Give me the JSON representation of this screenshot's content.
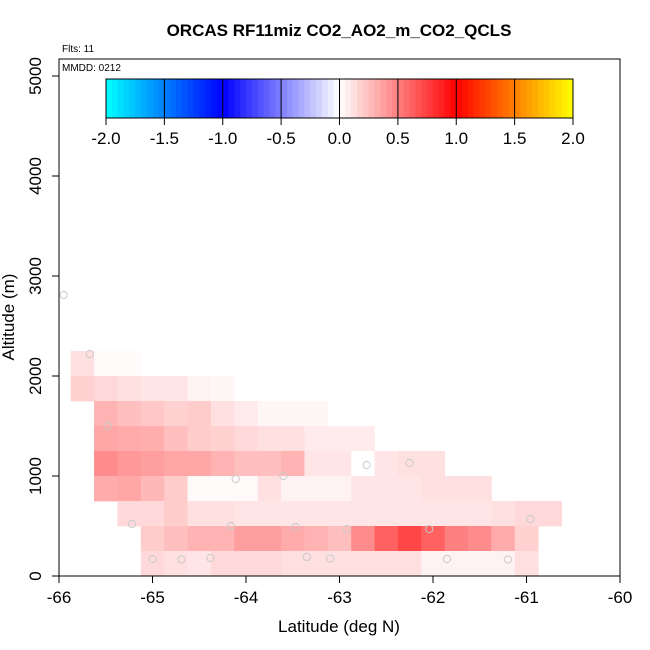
{
  "chart_data": {
    "type": "heatmap",
    "title": "ORCAS RF11miz CO2_AO2_m_CO2_QCLS",
    "annotations": {
      "flights": "Flts: 11",
      "date": "MMDD: 0212"
    },
    "xlabel": "Latitude (deg N)",
    "ylabel": "Altitude (m)",
    "xlim": [
      -66,
      -60
    ],
    "ylim": [
      0,
      5200
    ],
    "x_ticks": [
      -66,
      -65,
      -64,
      -63,
      -62,
      -61,
      -60
    ],
    "y_ticks": [
      0,
      1000,
      2000,
      3000,
      4000,
      5000
    ],
    "colorbar": {
      "range": [
        -2.0,
        2.0
      ],
      "ticks": [
        "-2.0",
        "-1.5",
        "-1.0",
        "-0.5",
        "0.0",
        "0.5",
        "1.0",
        "1.5",
        "2.0"
      ],
      "colors": [
        "#00ffff",
        "#0000ff",
        "#ffffff",
        "#ff0000",
        "#ffff00"
      ]
    },
    "cell_size": {
      "dlat": 0.25,
      "dalt": 250
    },
    "cells": [
      {
        "lat": -65.75,
        "alt": 2000,
        "v": 0.12
      },
      {
        "lat": -65.5,
        "alt": 2000,
        "v": 0.02
      },
      {
        "lat": -65.25,
        "alt": 2000,
        "v": 0.02
      },
      {
        "lat": -65.75,
        "alt": 1750,
        "v": 0.18
      },
      {
        "lat": -65.5,
        "alt": 1750,
        "v": 0.15
      },
      {
        "lat": -65.25,
        "alt": 1750,
        "v": 0.12
      },
      {
        "lat": -65.0,
        "alt": 1750,
        "v": 0.1
      },
      {
        "lat": -64.75,
        "alt": 1750,
        "v": 0.1
      },
      {
        "lat": -64.5,
        "alt": 1750,
        "v": 0.05
      },
      {
        "lat": -64.25,
        "alt": 1750,
        "v": 0.03
      },
      {
        "lat": -65.5,
        "alt": 1500,
        "v": 0.3
      },
      {
        "lat": -65.25,
        "alt": 1500,
        "v": 0.25
      },
      {
        "lat": -65.0,
        "alt": 1500,
        "v": 0.22
      },
      {
        "lat": -64.75,
        "alt": 1500,
        "v": 0.18
      },
      {
        "lat": -64.5,
        "alt": 1500,
        "v": 0.2
      },
      {
        "lat": -64.25,
        "alt": 1500,
        "v": 0.12
      },
      {
        "lat": -64.0,
        "alt": 1500,
        "v": 0.08
      },
      {
        "lat": -63.75,
        "alt": 1500,
        "v": 0.03
      },
      {
        "lat": -63.5,
        "alt": 1500,
        "v": 0.03
      },
      {
        "lat": -63.25,
        "alt": 1500,
        "v": 0.03
      },
      {
        "lat": -65.5,
        "alt": 1250,
        "v": 0.35
      },
      {
        "lat": -65.25,
        "alt": 1250,
        "v": 0.33
      },
      {
        "lat": -65.0,
        "alt": 1250,
        "v": 0.32
      },
      {
        "lat": -64.75,
        "alt": 1250,
        "v": 0.25
      },
      {
        "lat": -64.5,
        "alt": 1250,
        "v": 0.2
      },
      {
        "lat": -64.25,
        "alt": 1250,
        "v": 0.18
      },
      {
        "lat": -64.0,
        "alt": 1250,
        "v": 0.15
      },
      {
        "lat": -63.75,
        "alt": 1250,
        "v": 0.12
      },
      {
        "lat": -63.5,
        "alt": 1250,
        "v": 0.12
      },
      {
        "lat": -63.25,
        "alt": 1250,
        "v": 0.08
      },
      {
        "lat": -63.0,
        "alt": 1250,
        "v": 0.08
      },
      {
        "lat": -62.75,
        "alt": 1250,
        "v": 0.08
      },
      {
        "lat": -65.5,
        "alt": 1000,
        "v": 0.45
      },
      {
        "lat": -65.25,
        "alt": 1000,
        "v": 0.4
      },
      {
        "lat": -65.0,
        "alt": 1000,
        "v": 0.38
      },
      {
        "lat": -64.75,
        "alt": 1000,
        "v": 0.35
      },
      {
        "lat": -64.5,
        "alt": 1000,
        "v": 0.35
      },
      {
        "lat": -64.25,
        "alt": 1000,
        "v": 0.3
      },
      {
        "lat": -64.0,
        "alt": 1000,
        "v": 0.25
      },
      {
        "lat": -63.75,
        "alt": 1000,
        "v": 0.25
      },
      {
        "lat": -63.5,
        "alt": 1000,
        "v": 0.3
      },
      {
        "lat": -63.25,
        "alt": 1000,
        "v": 0.1
      },
      {
        "lat": -63.0,
        "alt": 1000,
        "v": 0.1
      },
      {
        "lat": -62.75,
        "alt": 1000,
        "v": 0.0
      },
      {
        "lat": -62.5,
        "alt": 1000,
        "v": 0.1
      },
      {
        "lat": -62.25,
        "alt": 1000,
        "v": 0.12
      },
      {
        "lat": -62.0,
        "alt": 1000,
        "v": 0.12
      },
      {
        "lat": -65.5,
        "alt": 750,
        "v": 0.33
      },
      {
        "lat": -65.25,
        "alt": 750,
        "v": 0.35
      },
      {
        "lat": -65.0,
        "alt": 750,
        "v": 0.28
      },
      {
        "lat": -64.75,
        "alt": 750,
        "v": 0.2
      },
      {
        "lat": -64.5,
        "alt": 750,
        "v": 0.02
      },
      {
        "lat": -64.25,
        "alt": 750,
        "v": 0.02
      },
      {
        "lat": -64.0,
        "alt": 750,
        "v": 0.02
      },
      {
        "lat": -63.75,
        "alt": 750,
        "v": 0.12
      },
      {
        "lat": -63.5,
        "alt": 750,
        "v": 0.05
      },
      {
        "lat": -63.25,
        "alt": 750,
        "v": 0.05
      },
      {
        "lat": -63.0,
        "alt": 750,
        "v": 0.05
      },
      {
        "lat": -62.75,
        "alt": 750,
        "v": 0.1
      },
      {
        "lat": -62.5,
        "alt": 750,
        "v": 0.1
      },
      {
        "lat": -62.25,
        "alt": 750,
        "v": 0.1
      },
      {
        "lat": -62.0,
        "alt": 750,
        "v": 0.12
      },
      {
        "lat": -61.75,
        "alt": 750,
        "v": 0.12
      },
      {
        "lat": -61.5,
        "alt": 750,
        "v": 0.12
      },
      {
        "lat": -65.25,
        "alt": 500,
        "v": 0.15
      },
      {
        "lat": -65.0,
        "alt": 500,
        "v": 0.15
      },
      {
        "lat": -64.75,
        "alt": 500,
        "v": 0.2
      },
      {
        "lat": -64.5,
        "alt": 500,
        "v": 0.12
      },
      {
        "lat": -64.25,
        "alt": 500,
        "v": 0.12
      },
      {
        "lat": -64.0,
        "alt": 500,
        "v": 0.1
      },
      {
        "lat": -63.75,
        "alt": 500,
        "v": 0.1
      },
      {
        "lat": -63.5,
        "alt": 500,
        "v": 0.1
      },
      {
        "lat": -63.25,
        "alt": 500,
        "v": 0.1
      },
      {
        "lat": -63.0,
        "alt": 500,
        "v": 0.1
      },
      {
        "lat": -62.75,
        "alt": 500,
        "v": 0.1
      },
      {
        "lat": -62.5,
        "alt": 500,
        "v": 0.1
      },
      {
        "lat": -62.25,
        "alt": 500,
        "v": 0.1
      },
      {
        "lat": -62.0,
        "alt": 500,
        "v": 0.1
      },
      {
        "lat": -61.75,
        "alt": 500,
        "v": 0.1
      },
      {
        "lat": -61.5,
        "alt": 500,
        "v": 0.1
      },
      {
        "lat": -61.25,
        "alt": 500,
        "v": 0.12
      },
      {
        "lat": -61.0,
        "alt": 500,
        "v": 0.15
      },
      {
        "lat": -60.75,
        "alt": 500,
        "v": 0.15
      },
      {
        "lat": -65.0,
        "alt": 250,
        "v": 0.2
      },
      {
        "lat": -64.75,
        "alt": 250,
        "v": 0.25
      },
      {
        "lat": -64.5,
        "alt": 250,
        "v": 0.3
      },
      {
        "lat": -64.25,
        "alt": 250,
        "v": 0.3
      },
      {
        "lat": -64.0,
        "alt": 250,
        "v": 0.38
      },
      {
        "lat": -63.75,
        "alt": 250,
        "v": 0.38
      },
      {
        "lat": -63.5,
        "alt": 250,
        "v": 0.33
      },
      {
        "lat": -63.25,
        "alt": 250,
        "v": 0.3
      },
      {
        "lat": -63.0,
        "alt": 250,
        "v": 0.25
      },
      {
        "lat": -62.75,
        "alt": 250,
        "v": 0.45
      },
      {
        "lat": -62.5,
        "alt": 250,
        "v": 0.62
      },
      {
        "lat": -62.25,
        "alt": 250,
        "v": 0.72
      },
      {
        "lat": -62.0,
        "alt": 250,
        "v": 0.62
      },
      {
        "lat": -61.75,
        "alt": 250,
        "v": 0.5
      },
      {
        "lat": -61.5,
        "alt": 250,
        "v": 0.45
      },
      {
        "lat": -61.25,
        "alt": 250,
        "v": 0.33
      },
      {
        "lat": -61.0,
        "alt": 250,
        "v": 0.18
      },
      {
        "lat": -65.0,
        "alt": 0,
        "v": 0.15
      },
      {
        "lat": -64.75,
        "alt": 0,
        "v": 0.12
      },
      {
        "lat": -64.5,
        "alt": 0,
        "v": 0.1
      },
      {
        "lat": -64.25,
        "alt": 0,
        "v": 0.15
      },
      {
        "lat": -64.0,
        "alt": 0,
        "v": 0.15
      },
      {
        "lat": -63.75,
        "alt": 0,
        "v": 0.15
      },
      {
        "lat": -63.5,
        "alt": 0,
        "v": 0.12
      },
      {
        "lat": -63.25,
        "alt": 0,
        "v": 0.12
      },
      {
        "lat": -63.0,
        "alt": 0,
        "v": 0.12
      },
      {
        "lat": -62.75,
        "alt": 0,
        "v": 0.12
      },
      {
        "lat": -62.5,
        "alt": 0,
        "v": 0.12
      },
      {
        "lat": -62.25,
        "alt": 0,
        "v": 0.12
      },
      {
        "lat": -62.0,
        "alt": 0,
        "v": 0.05
      },
      {
        "lat": -61.75,
        "alt": 0,
        "v": 0.05
      },
      {
        "lat": -61.5,
        "alt": 0,
        "v": 0.05
      },
      {
        "lat": -61.25,
        "alt": 0,
        "v": 0.05
      },
      {
        "lat": -61.0,
        "alt": 0,
        "v": 0.12
      }
    ],
    "points": [
      {
        "lat": -65.95,
        "alt": 2810
      },
      {
        "lat": -65.67,
        "alt": 2220
      },
      {
        "lat": -65.48,
        "alt": 1500
      },
      {
        "lat": -65.22,
        "alt": 520
      },
      {
        "lat": -65.0,
        "alt": 170
      },
      {
        "lat": -64.69,
        "alt": 165
      },
      {
        "lat": -64.38,
        "alt": 180
      },
      {
        "lat": -64.16,
        "alt": 500
      },
      {
        "lat": -64.11,
        "alt": 970
      },
      {
        "lat": -63.6,
        "alt": 1000
      },
      {
        "lat": -63.47,
        "alt": 490
      },
      {
        "lat": -63.35,
        "alt": 190
      },
      {
        "lat": -63.1,
        "alt": 175
      },
      {
        "lat": -62.92,
        "alt": 470
      },
      {
        "lat": -62.71,
        "alt": 1110
      },
      {
        "lat": -62.25,
        "alt": 1130
      },
      {
        "lat": -62.04,
        "alt": 470
      },
      {
        "lat": -61.85,
        "alt": 170
      },
      {
        "lat": -61.2,
        "alt": 165
      },
      {
        "lat": -60.96,
        "alt": 570
      }
    ]
  }
}
